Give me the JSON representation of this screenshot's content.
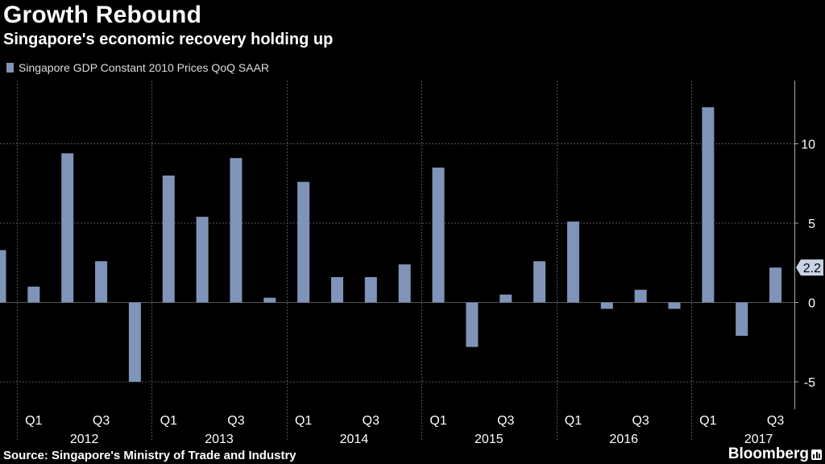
{
  "header": {
    "title": "Growth Rebound",
    "subtitle": "Singapore's economic recovery holding up"
  },
  "legend": {
    "label": "Singapore GDP Constant 2010 Prices QoQ SAAR"
  },
  "footer": {
    "source": "Source: Singapore's Ministry of Trade and Industry",
    "brand": "Bloomberg"
  },
  "chart_data": {
    "type": "bar",
    "title": "Growth Rebound",
    "subtitle": "Singapore's economic recovery holding up",
    "series": [
      {
        "name": "Singapore GDP Constant 2010 Prices QoQ SAAR",
        "color": "#7f94b8",
        "values": [
          3.3,
          1.0,
          9.4,
          2.6,
          -5.0,
          8.0,
          5.4,
          9.1,
          0.3,
          7.6,
          1.6,
          1.6,
          2.4,
          8.5,
          -2.8,
          0.5,
          2.6,
          5.1,
          -0.4,
          0.8,
          -0.4,
          12.3,
          -2.1,
          2.2
        ]
      }
    ],
    "categories": [
      "2011 Q4",
      "2012 Q1",
      "2012 Q2",
      "2012 Q3",
      "2012 Q4",
      "2013 Q1",
      "2013 Q2",
      "2013 Q3",
      "2013 Q4",
      "2014 Q1",
      "2014 Q2",
      "2014 Q3",
      "2014 Q4",
      "2015 Q1",
      "2015 Q2",
      "2015 Q3",
      "2015 Q4",
      "2016 Q1",
      "2016 Q2",
      "2016 Q3",
      "2016 Q4",
      "2017 Q1",
      "2017 Q2",
      "2017 Q3"
    ],
    "y_ticks": [
      10,
      5,
      0,
      -5
    ],
    "y_tick_labels": [
      "10",
      "5",
      "0",
      "-5"
    ],
    "ylim": [
      -6.5,
      14
    ],
    "x_quarter_labels": [
      "Q1",
      "Q3"
    ],
    "x_year_labels": [
      "2012",
      "2013",
      "2014",
      "2015",
      "2016",
      "2017"
    ],
    "last_value_label": "2.2",
    "grid": true,
    "legend_position": "top-left",
    "colors": {
      "background": "#000000",
      "bar": "#7f94b8",
      "grid": "#555555",
      "axis_text": "#ffffff"
    }
  }
}
